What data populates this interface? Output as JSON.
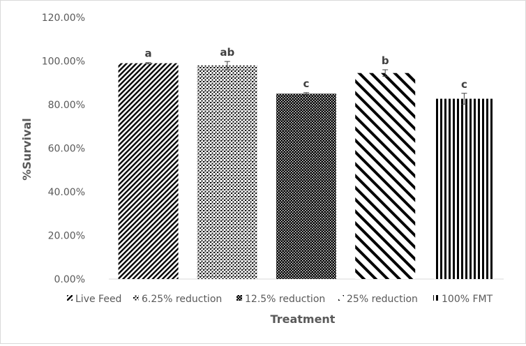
{
  "chart_data": {
    "type": "bar",
    "categories": [
      "Live Feed",
      "6.25% reduction",
      "12.5% reduction",
      "25% reduction",
      "100% FMT"
    ],
    "values": [
      99.0,
      98.0,
      85.0,
      94.5,
      82.7
    ],
    "errors": [
      0.3,
      1.8,
      0.5,
      1.5,
      2.5
    ],
    "significance": [
      "a",
      "ab",
      "c",
      "b",
      "c"
    ],
    "xlabel": "Treatment",
    "ylabel": "%Survival",
    "ylim": [
      0,
      120
    ],
    "yticks": [
      "0.00%",
      "20.00%",
      "40.00%",
      "60.00%",
      "80.00%",
      "100.00%",
      "120.00%"
    ],
    "ytick_values": [
      0,
      20,
      40,
      60,
      80,
      100,
      120
    ],
    "grid": false,
    "legend_position": "bottom",
    "legend": [
      "Live Feed",
      "6.25% reduction",
      "12.5% reduction",
      "25% reduction",
      "100% FMT"
    ],
    "patterns": [
      "diagonal-fine",
      "dots-grid",
      "checker-dense",
      "diagonal-wide",
      "vertical-stripes"
    ],
    "colors": {
      "bar_ink": "#000000",
      "text": "#595959",
      "label": "#404040",
      "border": "#d9d9d9"
    }
  }
}
